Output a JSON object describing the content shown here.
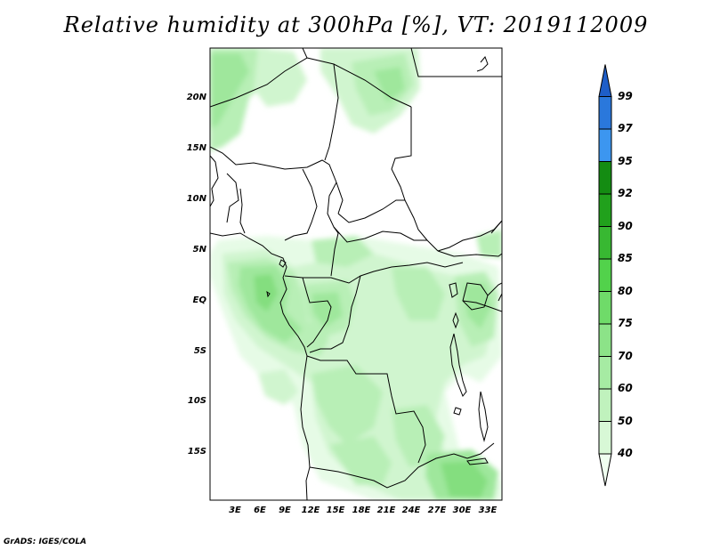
{
  "title": "Relative humidity at 300hPa [%], VT: 2019112009",
  "credit": "GrADS: IGES/COLA",
  "map": {
    "lat_labels": [
      "20N",
      "15N",
      "10N",
      "5N",
      "EQ",
      "5S",
      "10S",
      "15S"
    ],
    "lon_labels": [
      "3E",
      "6E",
      "9E",
      "12E",
      "15E",
      "18E",
      "21E",
      "24E",
      "27E",
      "30E",
      "33E"
    ],
    "field_colors": {
      "40-50": "#e6fbe6",
      "50-60": "#d0f5cf",
      "60-70": "#b8efb6",
      "70-75": "#9fe79c",
      "75-80": "#84de7f"
    },
    "coastline_color": "#000000"
  },
  "colorbar": {
    "levels": [
      "40",
      "50",
      "60",
      "70",
      "75",
      "80",
      "85",
      "90",
      "92",
      "95",
      "97",
      "99"
    ],
    "colors": [
      "#f0fff0",
      "#d8f8d6",
      "#c0f2bd",
      "#a6eba3",
      "#8ce388",
      "#6fdb69",
      "#52d24b",
      "#38b832",
      "#21a11c",
      "#148c12",
      "#3c96f0",
      "#2a78dc",
      "#1e5ec8"
    ]
  }
}
